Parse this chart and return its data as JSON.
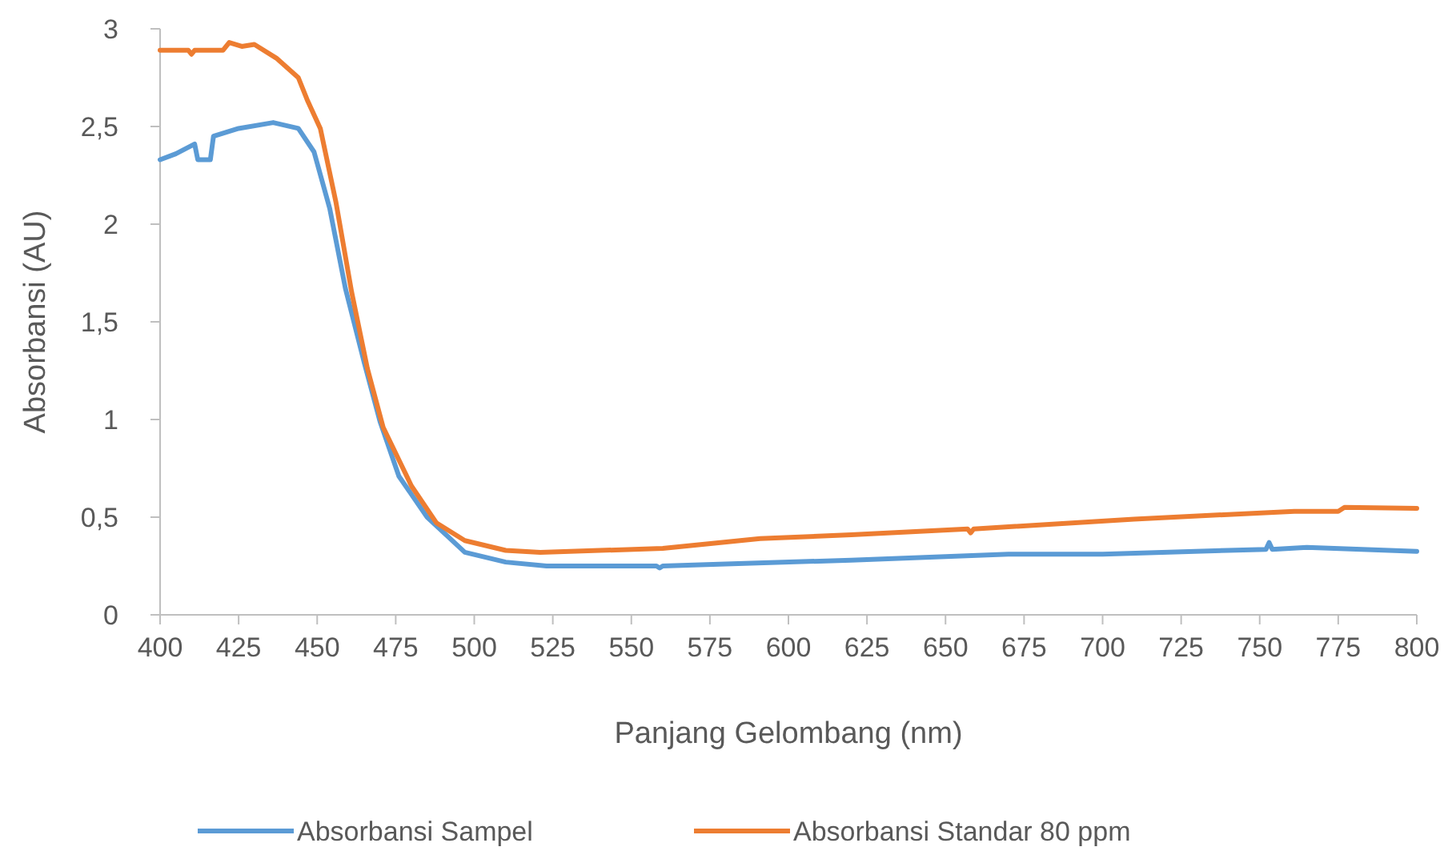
{
  "chart_data": {
    "type": "line",
    "xlabel": "Panjang Gelombang (nm)",
    "ylabel": "Absorbansi (AU)",
    "xlim": [
      400,
      800
    ],
    "xticks": [
      400,
      425,
      450,
      475,
      500,
      525,
      550,
      575,
      600,
      625,
      650,
      675,
      700,
      725,
      750,
      775,
      800
    ],
    "ylim": [
      0,
      3
    ],
    "yticks": [
      {
        "value": 0,
        "label": "0"
      },
      {
        "value": 0.5,
        "label": "0,5"
      },
      {
        "value": 1,
        "label": "1"
      },
      {
        "value": 1.5,
        "label": "1,5"
      },
      {
        "value": 2,
        "label": "2"
      },
      {
        "value": 2.5,
        "label": "2,5"
      },
      {
        "value": 3,
        "label": "3"
      }
    ],
    "legend": "bottom",
    "marker": "none",
    "line_style": "solid",
    "series": [
      {
        "name": "Absorbansi Sampel",
        "color": "#5b9bd5",
        "x": [
          400,
          405,
          411,
          412,
          416,
          417,
          425,
          436,
          444,
          449,
          454,
          459,
          465,
          470,
          476,
          485,
          497,
          510,
          523,
          540,
          558,
          559,
          560,
          580,
          620,
          670,
          700,
          740,
          752,
          753,
          754,
          765,
          800
        ],
        "values": [
          2.33,
          2.36,
          2.41,
          2.33,
          2.33,
          2.45,
          2.49,
          2.52,
          2.49,
          2.37,
          2.08,
          1.67,
          1.29,
          0.99,
          0.71,
          0.5,
          0.32,
          0.27,
          0.25,
          0.25,
          0.25,
          0.24,
          0.25,
          0.26,
          0.28,
          0.31,
          0.31,
          0.33,
          0.335,
          0.37,
          0.335,
          0.345,
          0.325
        ]
      },
      {
        "name": "Absorbansi Standar 80 ppm",
        "color": "#ed7d31",
        "x": [
          400,
          409,
          410,
          411,
          420,
          422,
          426,
          430,
          437,
          444,
          447,
          451,
          456,
          461,
          466,
          471,
          480,
          488,
          497,
          510,
          521,
          560,
          591,
          620,
          657,
          658,
          659,
          710,
          761,
          775,
          777,
          800
        ],
        "values": [
          2.89,
          2.89,
          2.87,
          2.89,
          2.89,
          2.93,
          2.91,
          2.92,
          2.85,
          2.75,
          2.63,
          2.49,
          2.11,
          1.65,
          1.26,
          0.96,
          0.66,
          0.47,
          0.38,
          0.33,
          0.32,
          0.34,
          0.39,
          0.41,
          0.44,
          0.42,
          0.44,
          0.49,
          0.53,
          0.53,
          0.55,
          0.545
        ]
      }
    ]
  }
}
